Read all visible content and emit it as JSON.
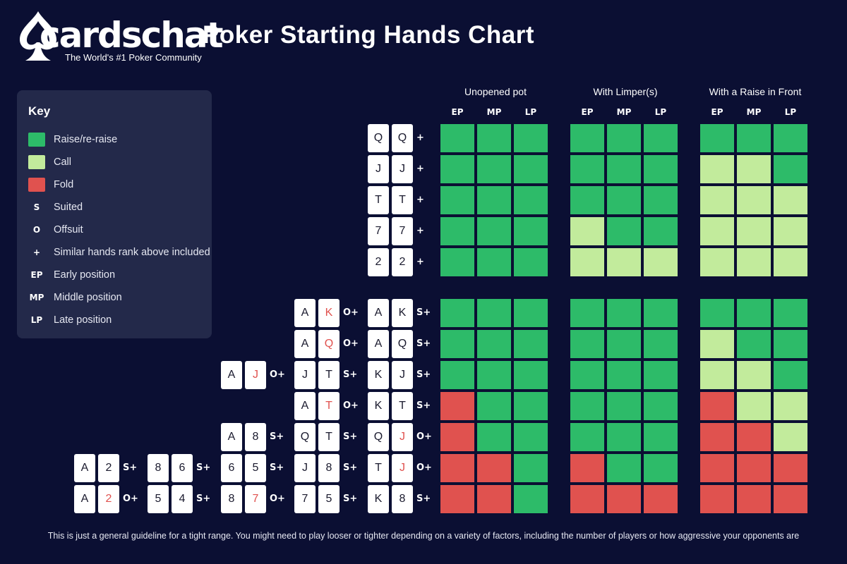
{
  "logo": {
    "word": "cardschat",
    "tagline": "The World's #1 Poker Community"
  },
  "title": "Poker Starting Hands Chart",
  "colors": {
    "raise": "#2dbb69",
    "call": "#c2eb9c",
    "fold": "#e0524f",
    "background": "#0b0f33",
    "key_panel": "#23294a",
    "card_red": "#e0524f",
    "card_text": "#1a1a2e"
  },
  "key": {
    "title": "Key",
    "items": [
      {
        "symbol": "",
        "kind": "raise",
        "label": "Raise/re-raise"
      },
      {
        "symbol": "",
        "kind": "call",
        "label": "Call"
      },
      {
        "symbol": "",
        "kind": "fold",
        "label": "Fold"
      },
      {
        "symbol": "S",
        "kind": "text",
        "label": "Suited"
      },
      {
        "symbol": "O",
        "kind": "text",
        "label": "Offsuit"
      },
      {
        "symbol": "+",
        "kind": "text",
        "label": "Similar hands rank above included"
      },
      {
        "symbol": "EP",
        "kind": "text",
        "label": "Early position"
      },
      {
        "symbol": "MP",
        "kind": "text",
        "label": "Middle position"
      },
      {
        "symbol": "LP",
        "kind": "text",
        "label": "Late position"
      }
    ]
  },
  "groups": [
    {
      "title": "Unopened pot",
      "positions": [
        "EP",
        "MP",
        "LP"
      ]
    },
    {
      "title": "With Limper(s)",
      "positions": [
        "EP",
        "MP",
        "LP"
      ]
    },
    {
      "title": "With a Raise in Front",
      "positions": [
        "EP",
        "MP",
        "LP"
      ]
    }
  ],
  "rows": [
    {
      "hands": [
        {
          "cards": [
            [
              "Q",
              0
            ],
            [
              "Q",
              0
            ]
          ],
          "suffix": "+"
        }
      ],
      "actions": [
        [
          "R",
          "R",
          "R"
        ],
        [
          "R",
          "R",
          "R"
        ],
        [
          "R",
          "R",
          "R"
        ]
      ]
    },
    {
      "hands": [
        {
          "cards": [
            [
              "J",
              0
            ],
            [
              "J",
              0
            ]
          ],
          "suffix": "+"
        }
      ],
      "actions": [
        [
          "R",
          "R",
          "R"
        ],
        [
          "R",
          "R",
          "R"
        ],
        [
          "C",
          "C",
          "R"
        ]
      ]
    },
    {
      "hands": [
        {
          "cards": [
            [
              "T",
              0
            ],
            [
              "T",
              0
            ]
          ],
          "suffix": "+"
        }
      ],
      "actions": [
        [
          "R",
          "R",
          "R"
        ],
        [
          "R",
          "R",
          "R"
        ],
        [
          "C",
          "C",
          "C"
        ]
      ]
    },
    {
      "hands": [
        {
          "cards": [
            [
              "7",
              0
            ],
            [
              "7",
              0
            ]
          ],
          "suffix": "+"
        }
      ],
      "actions": [
        [
          "R",
          "R",
          "R"
        ],
        [
          "C",
          "R",
          "R"
        ],
        [
          "C",
          "C",
          "C"
        ]
      ]
    },
    {
      "hands": [
        {
          "cards": [
            [
              "2",
              0
            ],
            [
              "2",
              0
            ]
          ],
          "suffix": "+"
        }
      ],
      "actions": [
        [
          "R",
          "R",
          "R"
        ],
        [
          "C",
          "C",
          "C"
        ],
        [
          "C",
          "C",
          "C"
        ]
      ]
    },
    {
      "hands": [
        {
          "cards": [
            [
              "A",
              0
            ],
            [
              "K",
              1
            ]
          ],
          "suffix": "O+"
        },
        {
          "cards": [
            [
              "A",
              0
            ],
            [
              "K",
              0
            ]
          ],
          "suffix": "S+"
        }
      ],
      "actions": [
        [
          "R",
          "R",
          "R"
        ],
        [
          "R",
          "R",
          "R"
        ],
        [
          "R",
          "R",
          "R"
        ]
      ]
    },
    {
      "hands": [
        {
          "cards": [
            [
              "A",
              0
            ],
            [
              "Q",
              1
            ]
          ],
          "suffix": "O+"
        },
        {
          "cards": [
            [
              "A",
              0
            ],
            [
              "Q",
              0
            ]
          ],
          "suffix": "S+"
        }
      ],
      "actions": [
        [
          "R",
          "R",
          "R"
        ],
        [
          "R",
          "R",
          "R"
        ],
        [
          "C",
          "R",
          "R"
        ]
      ]
    },
    {
      "hands": [
        {
          "cards": [
            [
              "A",
              0
            ],
            [
              "J",
              1
            ]
          ],
          "suffix": "O+"
        },
        {
          "cards": [
            [
              "J",
              0
            ],
            [
              "T",
              0
            ]
          ],
          "suffix": "S+"
        },
        {
          "cards": [
            [
              "K",
              0
            ],
            [
              "J",
              0
            ]
          ],
          "suffix": "S+"
        }
      ],
      "actions": [
        [
          "R",
          "R",
          "R"
        ],
        [
          "R",
          "R",
          "R"
        ],
        [
          "C",
          "C",
          "R"
        ]
      ]
    },
    {
      "hands": [
        {
          "cards": [
            [
              "A",
              0
            ],
            [
              "T",
              1
            ]
          ],
          "suffix": "O+"
        },
        {
          "cards": [
            [
              "K",
              0
            ],
            [
              "T",
              0
            ]
          ],
          "suffix": "S+"
        }
      ],
      "actions": [
        [
          "F",
          "R",
          "R"
        ],
        [
          "R",
          "R",
          "R"
        ],
        [
          "F",
          "C",
          "C"
        ]
      ]
    },
    {
      "hands": [
        {
          "cards": [
            [
              "A",
              0
            ],
            [
              "8",
              0
            ]
          ],
          "suffix": "S+"
        },
        {
          "cards": [
            [
              "Q",
              0
            ],
            [
              "T",
              0
            ]
          ],
          "suffix": "S+"
        },
        {
          "cards": [
            [
              "Q",
              0
            ],
            [
              "J",
              1
            ]
          ],
          "suffix": "O+"
        }
      ],
      "actions": [
        [
          "F",
          "R",
          "R"
        ],
        [
          "R",
          "R",
          "R"
        ],
        [
          "F",
          "F",
          "C"
        ]
      ]
    },
    {
      "hands": [
        {
          "cards": [
            [
              "A",
              0
            ],
            [
              "2",
              0
            ]
          ],
          "suffix": "S+"
        },
        {
          "cards": [
            [
              "8",
              0
            ],
            [
              "6",
              0
            ]
          ],
          "suffix": "S+"
        },
        {
          "cards": [
            [
              "6",
              0
            ],
            [
              "5",
              0
            ]
          ],
          "suffix": "S+"
        },
        {
          "cards": [
            [
              "J",
              0
            ],
            [
              "8",
              0
            ]
          ],
          "suffix": "S+"
        },
        {
          "cards": [
            [
              "T",
              0
            ],
            [
              "J",
              1
            ]
          ],
          "suffix": "O+"
        }
      ],
      "actions": [
        [
          "F",
          "F",
          "R"
        ],
        [
          "F",
          "R",
          "R"
        ],
        [
          "F",
          "F",
          "F"
        ]
      ]
    },
    {
      "hands": [
        {
          "cards": [
            [
              "A",
              0
            ],
            [
              "2",
              1
            ]
          ],
          "suffix": "O+"
        },
        {
          "cards": [
            [
              "5",
              0
            ],
            [
              "4",
              0
            ]
          ],
          "suffix": "S+"
        },
        {
          "cards": [
            [
              "8",
              0
            ],
            [
              "7",
              1
            ]
          ],
          "suffix": "O+"
        },
        {
          "cards": [
            [
              "7",
              0
            ],
            [
              "5",
              0
            ]
          ],
          "suffix": "S+"
        },
        {
          "cards": [
            [
              "K",
              0
            ],
            [
              "8",
              0
            ]
          ],
          "suffix": "S+"
        }
      ],
      "actions": [
        [
          "F",
          "F",
          "R"
        ],
        [
          "F",
          "F",
          "F"
        ],
        [
          "F",
          "F",
          "F"
        ]
      ]
    }
  ],
  "footer": "This is just a general guideline for a tight range. You might need to play looser or tighter depending on a variety of factors, including the number of players or how aggressive your opponents are"
}
